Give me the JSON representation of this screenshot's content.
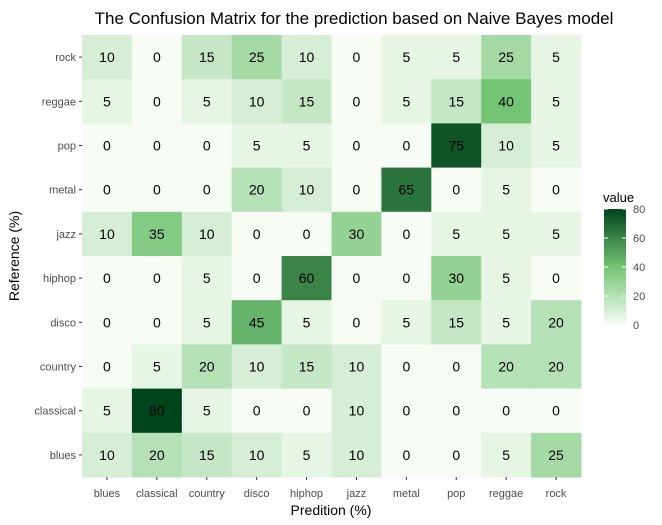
{
  "chart_data": {
    "type": "heatmap",
    "title": "The Confusion Matrix for the prediction based on Naive Bayes model",
    "xlabel": "Predition (%)",
    "ylabel": "Reference (%)",
    "x_categories": [
      "blues",
      "classical",
      "country",
      "disco",
      "hiphop",
      "jazz",
      "metal",
      "pop",
      "reggae",
      "rock"
    ],
    "y_categories_top_to_bottom": [
      "rock",
      "reggae",
      "pop",
      "metal",
      "jazz",
      "hiphop",
      "disco",
      "country",
      "classical",
      "blues"
    ],
    "values": [
      [
        10,
        0,
        15,
        25,
        10,
        0,
        5,
        5,
        25,
        5
      ],
      [
        5,
        0,
        5,
        10,
        15,
        0,
        5,
        15,
        40,
        5
      ],
      [
        0,
        0,
        0,
        5,
        5,
        0,
        0,
        75,
        10,
        5
      ],
      [
        0,
        0,
        0,
        20,
        10,
        0,
        65,
        0,
        5,
        0
      ],
      [
        10,
        35,
        10,
        0,
        0,
        30,
        0,
        5,
        5,
        5
      ],
      [
        0,
        0,
        5,
        0,
        60,
        0,
        0,
        30,
        5,
        0
      ],
      [
        0,
        0,
        5,
        45,
        5,
        0,
        5,
        15,
        5,
        20
      ],
      [
        0,
        5,
        20,
        10,
        15,
        10,
        0,
        0,
        20,
        20
      ],
      [
        5,
        80,
        5,
        0,
        0,
        10,
        0,
        0,
        0,
        0
      ],
      [
        10,
        20,
        15,
        10,
        5,
        10,
        0,
        0,
        5,
        25
      ]
    ],
    "legend": {
      "title": "value",
      "ticks": [
        0,
        20,
        40,
        60,
        80
      ],
      "range": [
        0,
        80
      ],
      "placement": "right",
      "color_low": "#f7fcf5",
      "color_high": "#00441b"
    },
    "panel_background": "#ebebeb"
  }
}
